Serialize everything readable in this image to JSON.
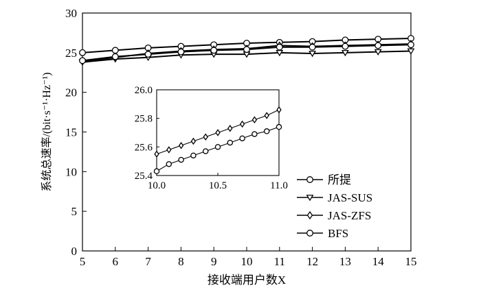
{
  "chart_data": {
    "type": "line",
    "xlabel": "接收端用户数X",
    "ylabel": "系统总速率/(bit·s⁻¹·Hz⁻¹)",
    "xlim": [
      5,
      15
    ],
    "ylim": [
      0,
      30
    ],
    "x_ticks": [
      "5",
      "6",
      "7",
      "8",
      "9",
      "10",
      "11",
      "12",
      "13",
      "14",
      "15"
    ],
    "y_ticks": [
      "0",
      "5",
      "10",
      "15",
      "20",
      "25",
      "30"
    ],
    "grid": false,
    "legend_position": "bottom-right",
    "x": [
      5,
      6,
      7,
      8,
      9,
      10,
      11,
      12,
      13,
      14,
      15
    ],
    "series": [
      {
        "name": "所提",
        "marker": "circle",
        "values": [
          25.0,
          25.3,
          25.6,
          25.8,
          26.0,
          26.2,
          26.3,
          26.4,
          26.6,
          26.7,
          26.8
        ]
      },
      {
        "name": "JAS-SUS",
        "marker": "triangle-down",
        "values": [
          23.8,
          24.2,
          24.4,
          24.7,
          24.8,
          24.8,
          25.0,
          24.9,
          25.0,
          25.1,
          25.2
        ]
      },
      {
        "name": "JAS-ZFS",
        "marker": "diamond",
        "values": [
          23.9,
          24.4,
          24.9,
          25.2,
          25.4,
          25.5,
          25.9,
          25.8,
          25.9,
          26.0,
          26.1
        ]
      },
      {
        "name": "BFS",
        "marker": "circle",
        "values": [
          24.0,
          24.5,
          24.8,
          25.1,
          25.3,
          25.4,
          25.7,
          25.7,
          25.8,
          25.9,
          26.0
        ]
      }
    ],
    "inset": {
      "xlim": [
        10.0,
        11.0
      ],
      "ylim": [
        25.4,
        26.0
      ],
      "x_ticks": [
        "10.0",
        "10.5",
        "11.0"
      ],
      "y_ticks": [
        "25.4",
        "25.6",
        "25.8",
        "26.0"
      ],
      "x": [
        10.0,
        10.1,
        10.2,
        10.3,
        10.4,
        10.5,
        10.6,
        10.7,
        10.8,
        10.9,
        11.0
      ],
      "series": [
        {
          "name": "JAS-ZFS",
          "marker": "diamond",
          "values": [
            25.55,
            25.58,
            25.61,
            25.64,
            25.67,
            25.7,
            25.73,
            25.76,
            25.79,
            25.82,
            25.86
          ]
        },
        {
          "name": "BFS",
          "marker": "circle",
          "values": [
            25.43,
            25.48,
            25.51,
            25.54,
            25.57,
            25.6,
            25.63,
            25.66,
            25.69,
            25.71,
            25.74
          ]
        }
      ]
    }
  }
}
